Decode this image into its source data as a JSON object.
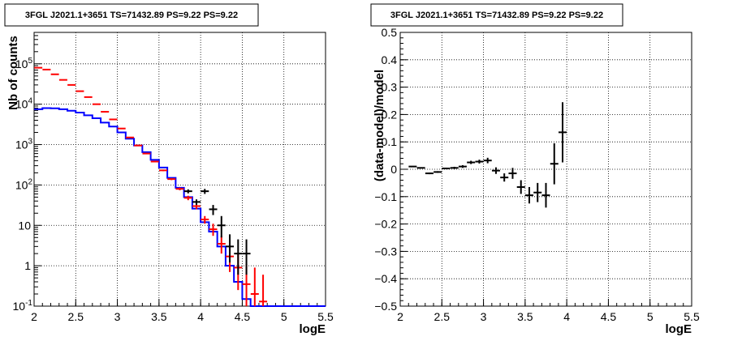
{
  "colors": {
    "data": "#000000",
    "model": "#0000ff",
    "predicted": "#ff0000",
    "grid": "#000000"
  },
  "chart_data": [
    {
      "type": "histogram",
      "title": "3FGL J2021.1+3651 TS=71432.89 PS=9.22 PS=9.22",
      "xlabel": "logE",
      "ylabel": "Nb of counts",
      "xlim": [
        2,
        5.5
      ],
      "ylim": [
        0.1,
        600000
      ],
      "yscale": "log",
      "grid": true,
      "xticks": [
        "2",
        "2.5",
        "3",
        "3.5",
        "4",
        "4.5",
        "5",
        "5.5"
      ],
      "yticks": [
        {
          "value": 0.1,
          "base": "10",
          "exp": "-1"
        },
        {
          "value": 1,
          "base": "1",
          "exp": ""
        },
        {
          "value": 10,
          "base": "10",
          "exp": ""
        },
        {
          "value": 100,
          "base": "10",
          "exp": "2"
        },
        {
          "value": 1000,
          "base": "10",
          "exp": "3"
        },
        {
          "value": 10000,
          "base": "10",
          "exp": "4"
        },
        {
          "value": 100000,
          "base": "10",
          "exp": "5"
        }
      ],
      "bin_edges": [
        2.0,
        2.1,
        2.2,
        2.3,
        2.4,
        2.5,
        2.6,
        2.7,
        2.8,
        2.9,
        3.0,
        3.1,
        3.2,
        3.3,
        3.4,
        3.5,
        3.6,
        3.7,
        3.8,
        3.9,
        4.0,
        4.1,
        4.2,
        4.3,
        4.4,
        4.5,
        4.6,
        4.7,
        4.8,
        4.9,
        5.0,
        5.1,
        5.2,
        5.3,
        5.4,
        5.5
      ],
      "series": [
        {
          "kind": "step",
          "values": [
            7500,
            8000,
            7900,
            7500,
            6900,
            6200,
            5300,
            4500,
            3500,
            2800,
            2000,
            1400,
            950,
            650,
            420,
            270,
            150,
            85,
            50,
            26,
            12,
            7,
            3,
            1,
            0.4,
            0.15,
            0.1,
            0.1,
            0.1,
            0.1,
            0.1,
            0.1,
            0.1,
            0.1,
            0.1
          ]
        },
        {
          "kind": "errorbar",
          "points": [
            {
              "x": 2.05,
              "y": 80000,
              "lo": 79500,
              "hi": 80500
            },
            {
              "x": 2.15,
              "y": 72000,
              "lo": 71500,
              "hi": 72500
            },
            {
              "x": 2.25,
              "y": 55000,
              "lo": 54600,
              "hi": 55400
            },
            {
              "x": 2.35,
              "y": 40000,
              "lo": 39700,
              "hi": 40300
            },
            {
              "x": 2.45,
              "y": 30000,
              "lo": 29700,
              "hi": 30300
            },
            {
              "x": 2.55,
              "y": 21000,
              "lo": 20800,
              "hi": 21200
            },
            {
              "x": 2.65,
              "y": 15000,
              "lo": 14800,
              "hi": 15200
            },
            {
              "x": 2.75,
              "y": 10000,
              "lo": 9900,
              "hi": 10100
            },
            {
              "x": 2.85,
              "y": 6500,
              "lo": 6400,
              "hi": 6600
            },
            {
              "x": 2.95,
              "y": 4200,
              "lo": 4150,
              "hi": 4250
            },
            {
              "x": 3.05,
              "y": 2500,
              "lo": 2450,
              "hi": 2550
            },
            {
              "x": 3.15,
              "y": 1500,
              "lo": 1470,
              "hi": 1530
            },
            {
              "x": 3.25,
              "y": 950,
              "lo": 930,
              "hi": 970
            },
            {
              "x": 3.35,
              "y": 600,
              "lo": 580,
              "hi": 620
            },
            {
              "x": 3.45,
              "y": 380,
              "lo": 365,
              "hi": 395
            },
            {
              "x": 3.55,
              "y": 230,
              "lo": 220,
              "hi": 240
            },
            {
              "x": 3.65,
              "y": 140,
              "lo": 132,
              "hi": 148
            },
            {
              "x": 3.75,
              "y": 80,
              "lo": 74,
              "hi": 86
            },
            {
              "x": 3.85,
              "y": 48,
              "lo": 42,
              "hi": 54
            },
            {
              "x": 3.95,
              "y": 30,
              "lo": 25,
              "hi": 35
            },
            {
              "x": 4.05,
              "y": 14,
              "lo": 11,
              "hi": 17
            },
            {
              "x": 4.15,
              "y": 8,
              "lo": 5.5,
              "hi": 11
            },
            {
              "x": 4.25,
              "y": 3.5,
              "lo": 2,
              "hi": 5.5
            },
            {
              "x": 4.35,
              "y": 1.7,
              "lo": 0.7,
              "hi": 3
            },
            {
              "x": 4.45,
              "y": 0.9,
              "lo": 0.25,
              "hi": 2
            },
            {
              "x": 4.55,
              "y": 0.35,
              "lo": 0.1,
              "hi": 1.1
            },
            {
              "x": 4.65,
              "y": 0.2,
              "lo": 0.1,
              "hi": 0.9
            },
            {
              "x": 4.75,
              "y": 0.13,
              "lo": 0.1,
              "hi": 0.6
            }
          ]
        },
        {
          "kind": "errorbar",
          "points": [
            {
              "x": 3.85,
              "y": 70,
              "lo": 62,
              "hi": 78
            },
            {
              "x": 3.95,
              "y": 38,
              "lo": 32,
              "hi": 44
            },
            {
              "x": 4.05,
              "y": 70,
              "lo": 60,
              "hi": 80
            },
            {
              "x": 4.15,
              "y": 25,
              "lo": 18,
              "hi": 32
            },
            {
              "x": 4.25,
              "y": 10,
              "lo": 5,
              "hi": 17
            },
            {
              "x": 4.35,
              "y": 3,
              "lo": 1.2,
              "hi": 6
            },
            {
              "x": 4.45,
              "y": 2,
              "lo": 0.6,
              "hi": 4.5
            },
            {
              "x": 4.55,
              "y": 2,
              "lo": 0.6,
              "hi": 4.5
            }
          ]
        }
      ]
    },
    {
      "type": "scatter",
      "title": "3FGL J2021.1+3651 TS=71432.89 PS=9.22 PS=9.22",
      "xlabel": "logE",
      "ylabel": "(data-model)/model",
      "xlim": [
        2,
        5.5
      ],
      "ylim": [
        -0.5,
        0.5
      ],
      "grid": true,
      "xticks": [
        "2",
        "2.5",
        "3",
        "3.5",
        "4",
        "4.5",
        "5",
        "5.5"
      ],
      "yticks": [
        "-0.5",
        "-0.4",
        "-0.3",
        "-0.2",
        "-0.1",
        "0",
        "0.1",
        "0.2",
        "0.3",
        "0.4",
        "0.5"
      ],
      "series": [
        {
          "kind": "errorbar",
          "points": [
            {
              "x": 2.15,
              "y": 0.01,
              "dy": 0.002
            },
            {
              "x": 2.25,
              "y": 0.005,
              "dy": 0.002
            },
            {
              "x": 2.35,
              "y": -0.015,
              "dy": 0.003
            },
            {
              "x": 2.45,
              "y": -0.01,
              "dy": 0.003
            },
            {
              "x": 2.55,
              "y": 0.003,
              "dy": 0.003
            },
            {
              "x": 2.65,
              "y": 0.005,
              "dy": 0.004
            },
            {
              "x": 2.75,
              "y": 0.01,
              "dy": 0.005
            },
            {
              "x": 2.85,
              "y": 0.025,
              "dy": 0.006
            },
            {
              "x": 2.95,
              "y": 0.028,
              "dy": 0.007
            },
            {
              "x": 3.05,
              "y": 0.032,
              "dy": 0.01
            },
            {
              "x": 3.15,
              "y": -0.005,
              "dy": 0.012
            },
            {
              "x": 3.25,
              "y": -0.03,
              "dy": 0.015
            },
            {
              "x": 3.35,
              "y": -0.015,
              "dy": 0.02
            },
            {
              "x": 3.45,
              "y": -0.065,
              "dy": 0.025
            },
            {
              "x": 3.55,
              "y": -0.095,
              "dy": 0.03
            },
            {
              "x": 3.65,
              "y": -0.085,
              "dy": 0.035
            },
            {
              "x": 3.75,
              "y": -0.095,
              "dy": 0.045
            },
            {
              "x": 3.85,
              "y": 0.02,
              "dy": 0.075
            },
            {
              "x": 3.95,
              "y": 0.135,
              "dy": 0.11
            }
          ]
        }
      ]
    }
  ]
}
